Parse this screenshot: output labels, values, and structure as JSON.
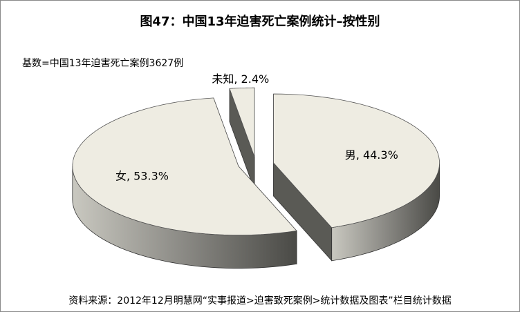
{
  "chart_data": {
    "type": "pie3d",
    "title": "图47：中国13年迫害死亡案例统计–按性别",
    "subtitle": "基数=中国13年迫害死亡案例3627例",
    "source": "资料来源：2012年12月明慧网“实事报道>迫害致死案例>统计数据及图表”栏目统计数据",
    "values": [
      44.3,
      53.3,
      2.4
    ],
    "value_labels": [
      "男, 44.3%",
      "女, 53.3%",
      "未知, 2.4%"
    ],
    "color": "#eeece2"
  }
}
